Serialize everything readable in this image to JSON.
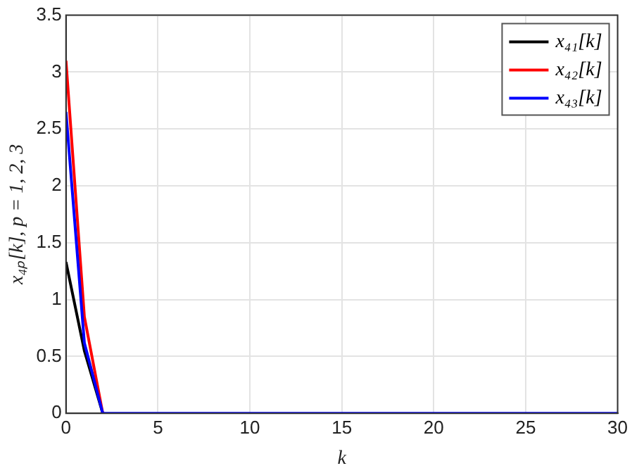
{
  "chart_data": {
    "type": "line",
    "xlabel": "k",
    "ylabel": "x₄ₚ[k], p = 1, 2, 3",
    "x": [
      0,
      1,
      2,
      3,
      4,
      5,
      6,
      7,
      8,
      9,
      10,
      11,
      12,
      13,
      14,
      15,
      16,
      17,
      18,
      19,
      20,
      21,
      22,
      23,
      24,
      25,
      26,
      27,
      28,
      29,
      30
    ],
    "series": [
      {
        "name": "x₄₁[k]",
        "color": "#000000",
        "values": [
          1.33,
          0.55,
          0,
          null,
          null,
          null,
          null,
          null,
          null,
          null,
          null,
          null,
          null,
          null,
          null,
          null,
          null,
          null,
          null,
          null,
          null,
          null,
          null,
          null,
          null,
          null,
          null,
          null,
          null,
          null,
          null
        ]
      },
      {
        "name": "x₄₂[k]",
        "color": "#ff0000",
        "values": [
          3.1,
          0.85,
          0,
          null,
          null,
          null,
          null,
          null,
          null,
          null,
          null,
          null,
          null,
          null,
          null,
          null,
          null,
          null,
          null,
          null,
          null,
          null,
          null,
          null,
          null,
          null,
          null,
          null,
          null,
          null,
          null
        ]
      },
      {
        "name": "x₄₃[k]",
        "color": "#0000ff",
        "values": [
          2.65,
          0.62,
          0,
          0,
          0,
          0,
          0,
          0,
          0,
          0,
          0,
          0,
          0,
          0,
          0,
          0,
          0,
          0,
          0,
          0,
          0,
          0,
          0,
          0,
          0,
          0,
          0,
          0,
          0,
          0,
          0
        ]
      }
    ],
    "xlim": [
      0,
      30
    ],
    "xticks": [
      0,
      5,
      10,
      15,
      20,
      25,
      30
    ],
    "ylim": [
      0,
      3.5
    ],
    "yticks": [
      0,
      0.5,
      1,
      1.5,
      2,
      2.5,
      3,
      3.5
    ],
    "grid": true,
    "legend": "top right",
    "marker": "none",
    "line_style": "solid"
  }
}
